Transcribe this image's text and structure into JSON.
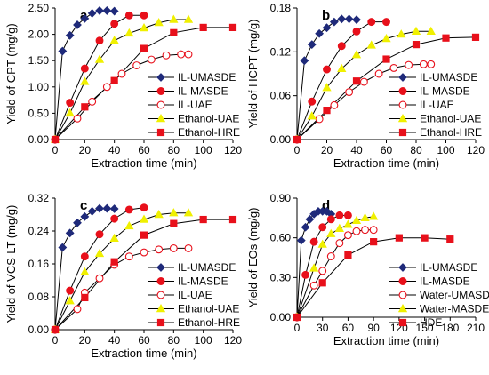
{
  "chart_data": [
    {
      "type": "line",
      "panel_label": "a",
      "xlabel": "Extraction time (min)",
      "ylabel": "Yield of CPT (mg/g)",
      "xlim": [
        0,
        120
      ],
      "ylim": [
        0,
        2.5
      ],
      "xticks": [
        0,
        20,
        40,
        60,
        80,
        100,
        120
      ],
      "yticks": [
        0,
        0.5,
        1,
        1.5,
        2,
        2.5
      ],
      "ytick_decimals": 2,
      "grid": false,
      "legend_position": "bottom-right",
      "series": [
        {
          "name": "IL-UMASDE",
          "marker": "diamond",
          "color": "#1f2a7a",
          "fill": "#1f2a7a",
          "points": [
            [
              0,
              0
            ],
            [
              5,
              1.68
            ],
            [
              10,
              1.98
            ],
            [
              15,
              2.18
            ],
            [
              20,
              2.3
            ],
            [
              25,
              2.4
            ],
            [
              30,
              2.45
            ],
            [
              35,
              2.45
            ],
            [
              40,
              2.44
            ]
          ]
        },
        {
          "name": "IL-MASDE",
          "marker": "circle",
          "color": "#e8101b",
          "fill": "#e8101b",
          "points": [
            [
              0,
              0
            ],
            [
              10,
              0.7
            ],
            [
              20,
              1.35
            ],
            [
              30,
              1.88
            ],
            [
              40,
              2.2
            ],
            [
              50,
              2.36
            ],
            [
              60,
              2.36
            ]
          ]
        },
        {
          "name": "IL-UAE",
          "marker": "circle",
          "color": "#e8101b",
          "fill": "#ffffff",
          "points": [
            [
              0,
              0
            ],
            [
              15,
              0.4
            ],
            [
              25,
              0.72
            ],
            [
              35,
              1.0
            ],
            [
              45,
              1.25
            ],
            [
              55,
              1.41
            ],
            [
              65,
              1.52
            ],
            [
              75,
              1.6
            ],
            [
              85,
              1.62
            ],
            [
              90,
              1.62
            ]
          ]
        },
        {
          "name": "Ethanol-UAE",
          "marker": "triangle",
          "color": "#f0f000",
          "fill": "#f0f000",
          "points": [
            [
              0,
              0
            ],
            [
              10,
              0.5
            ],
            [
              20,
              1.1
            ],
            [
              30,
              1.52
            ],
            [
              40,
              1.88
            ],
            [
              50,
              2.02
            ],
            [
              60,
              2.12
            ],
            [
              70,
              2.22
            ],
            [
              80,
              2.28
            ],
            [
              90,
              2.28
            ]
          ]
        },
        {
          "name": "Ethanol-HRE",
          "marker": "square",
          "color": "#e8101b",
          "fill": "#e8101b",
          "points": [
            [
              0,
              0
            ],
            [
              20,
              0.62
            ],
            [
              40,
              1.12
            ],
            [
              60,
              1.73
            ],
            [
              80,
              2.03
            ],
            [
              100,
              2.13
            ],
            [
              120,
              2.13
            ]
          ]
        }
      ]
    },
    {
      "type": "line",
      "panel_label": "b",
      "xlabel": "Extraction time (min)",
      "ylabel": "Yield of HCPT (mg/g)",
      "xlim": [
        0,
        120
      ],
      "ylim": [
        0,
        0.18
      ],
      "xticks": [
        0,
        20,
        40,
        60,
        80,
        100,
        120
      ],
      "yticks": [
        0,
        0.06,
        0.12,
        0.18
      ],
      "ytick_decimals": 2,
      "grid": false,
      "legend_position": "bottom-right",
      "series": [
        {
          "name": "IL-UMASDE",
          "marker": "diamond",
          "color": "#1f2a7a",
          "fill": "#1f2a7a",
          "points": [
            [
              0,
              0
            ],
            [
              5,
              0.108
            ],
            [
              10,
              0.13
            ],
            [
              15,
              0.145
            ],
            [
              20,
              0.153
            ],
            [
              25,
              0.161
            ],
            [
              30,
              0.165
            ],
            [
              35,
              0.165
            ],
            [
              40,
              0.164
            ]
          ]
        },
        {
          "name": "IL-MASDE",
          "marker": "circle",
          "color": "#e8101b",
          "fill": "#e8101b",
          "points": [
            [
              0,
              0
            ],
            [
              10,
              0.052
            ],
            [
              20,
              0.096
            ],
            [
              30,
              0.128
            ],
            [
              40,
              0.148
            ],
            [
              50,
              0.161
            ],
            [
              60,
              0.161
            ]
          ]
        },
        {
          "name": "IL-UAE",
          "marker": "circle",
          "color": "#e8101b",
          "fill": "#ffffff",
          "points": [
            [
              0,
              0
            ],
            [
              15,
              0.028
            ],
            [
              25,
              0.047
            ],
            [
              35,
              0.065
            ],
            [
              45,
              0.079
            ],
            [
              55,
              0.09
            ],
            [
              65,
              0.098
            ],
            [
              75,
              0.102
            ],
            [
              85,
              0.103
            ],
            [
              90,
              0.103
            ]
          ]
        },
        {
          "name": "Ethanol-UAE",
          "marker": "triangle",
          "color": "#f0f000",
          "fill": "#f0f000",
          "points": [
            [
              0,
              0
            ],
            [
              10,
              0.032
            ],
            [
              20,
              0.071
            ],
            [
              30,
              0.097
            ],
            [
              40,
              0.116
            ],
            [
              50,
              0.129
            ],
            [
              60,
              0.138
            ],
            [
              70,
              0.144
            ],
            [
              80,
              0.148
            ],
            [
              90,
              0.148
            ]
          ]
        },
        {
          "name": "Ethanol-HRE",
          "marker": "square",
          "color": "#e8101b",
          "fill": "#e8101b",
          "points": [
            [
              0,
              0
            ],
            [
              20,
              0.04
            ],
            [
              40,
              0.08
            ],
            [
              60,
              0.11
            ],
            [
              80,
              0.13
            ],
            [
              100,
              0.139
            ],
            [
              120,
              0.14
            ]
          ]
        }
      ]
    },
    {
      "type": "line",
      "panel_label": "c",
      "xlabel": "Extraction time (min)",
      "ylabel": "Yield of VCS-LT (mg/g)",
      "xlim": [
        0,
        120
      ],
      "ylim": [
        0,
        0.32
      ],
      "xticks": [
        0,
        20,
        40,
        60,
        80,
        100,
        120
      ],
      "yticks": [
        0,
        0.08,
        0.16,
        0.24,
        0.32
      ],
      "ytick_decimals": 2,
      "grid": false,
      "legend_position": "bottom-right",
      "series": [
        {
          "name": "IL-UMASDE",
          "marker": "diamond",
          "color": "#1f2a7a",
          "fill": "#1f2a7a",
          "points": [
            [
              0,
              0
            ],
            [
              5,
              0.2
            ],
            [
              10,
              0.235
            ],
            [
              15,
              0.26
            ],
            [
              20,
              0.275
            ],
            [
              25,
              0.288
            ],
            [
              30,
              0.295
            ],
            [
              35,
              0.295
            ],
            [
              40,
              0.294
            ]
          ]
        },
        {
          "name": "IL-MASDE",
          "marker": "circle",
          "color": "#e8101b",
          "fill": "#e8101b",
          "points": [
            [
              0,
              0
            ],
            [
              10,
              0.095
            ],
            [
              20,
              0.178
            ],
            [
              30,
              0.232
            ],
            [
              40,
              0.27
            ],
            [
              50,
              0.292
            ],
            [
              60,
              0.297
            ]
          ]
        },
        {
          "name": "IL-UAE",
          "marker": "circle",
          "color": "#e8101b",
          "fill": "#ffffff",
          "points": [
            [
              0,
              0
            ],
            [
              15,
              0.05
            ],
            [
              20,
              0.09
            ],
            [
              30,
              0.125
            ],
            [
              40,
              0.158
            ],
            [
              50,
              0.178
            ],
            [
              60,
              0.188
            ],
            [
              70,
              0.195
            ],
            [
              80,
              0.198
            ],
            [
              90,
              0.198
            ]
          ]
        },
        {
          "name": "Ethanol-UAE",
          "marker": "triangle",
          "color": "#f0f000",
          "fill": "#f0f000",
          "points": [
            [
              0,
              0
            ],
            [
              10,
              0.07
            ],
            [
              20,
              0.14
            ],
            [
              30,
              0.185
            ],
            [
              40,
              0.222
            ],
            [
              50,
              0.252
            ],
            [
              60,
              0.268
            ],
            [
              70,
              0.28
            ],
            [
              80,
              0.284
            ],
            [
              90,
              0.284
            ]
          ]
        },
        {
          "name": "Ethanol-HRE",
          "marker": "square",
          "color": "#e8101b",
          "fill": "#e8101b",
          "points": [
            [
              0,
              0
            ],
            [
              20,
              0.078
            ],
            [
              40,
              0.165
            ],
            [
              60,
              0.23
            ],
            [
              80,
              0.258
            ],
            [
              100,
              0.268
            ],
            [
              120,
              0.268
            ]
          ]
        }
      ]
    },
    {
      "type": "line",
      "panel_label": "d",
      "xlabel": "Extraction time (min)",
      "ylabel": "Yield of EOs (mg/g)",
      "xlim": [
        0,
        210
      ],
      "ylim": [
        0,
        0.9
      ],
      "xticks": [
        0,
        30,
        60,
        90,
        120,
        150,
        180,
        210
      ],
      "yticks": [
        0,
        0.3,
        0.6,
        0.9
      ],
      "ytick_decimals": 2,
      "grid": false,
      "legend_position": "bottom-right",
      "series": [
        {
          "name": "IL-UMASDE",
          "marker": "diamond",
          "color": "#1f2a7a",
          "fill": "#1f2a7a",
          "points": [
            [
              0,
              0
            ],
            [
              5,
              0.58
            ],
            [
              10,
              0.68
            ],
            [
              15,
              0.74
            ],
            [
              20,
              0.78
            ],
            [
              25,
              0.8
            ],
            [
              30,
              0.8
            ],
            [
              35,
              0.8
            ],
            [
              40,
              0.78
            ]
          ]
        },
        {
          "name": "IL-MASDE",
          "marker": "circle",
          "color": "#e8101b",
          "fill": "#e8101b",
          "points": [
            [
              0,
              0
            ],
            [
              10,
              0.32
            ],
            [
              20,
              0.57
            ],
            [
              30,
              0.68
            ],
            [
              40,
              0.74
            ],
            [
              50,
              0.77
            ],
            [
              60,
              0.77
            ]
          ]
        },
        {
          "name": "Water-UMASDE",
          "marker": "circle",
          "color": "#e8101b",
          "fill": "#ffffff",
          "points": [
            [
              0,
              0
            ],
            [
              20,
              0.24
            ],
            [
              30,
              0.35
            ],
            [
              40,
              0.46
            ],
            [
              50,
              0.56
            ],
            [
              60,
              0.62
            ],
            [
              70,
              0.65
            ],
            [
              80,
              0.66
            ],
            [
              90,
              0.66
            ]
          ]
        },
        {
          "name": "Water-MASDE",
          "marker": "triangle",
          "color": "#f0f000",
          "fill": "#f0f000",
          "points": [
            [
              0,
              0
            ],
            [
              20,
              0.37
            ],
            [
              30,
              0.55
            ],
            [
              40,
              0.63
            ],
            [
              50,
              0.67
            ],
            [
              60,
              0.7
            ],
            [
              70,
              0.73
            ],
            [
              80,
              0.75
            ],
            [
              90,
              0.76
            ]
          ]
        },
        {
          "name": "HDE",
          "marker": "square",
          "color": "#e8101b",
          "fill": "#e8101b",
          "points": [
            [
              0,
              0
            ],
            [
              30,
              0.26
            ],
            [
              60,
              0.47
            ],
            [
              90,
              0.57
            ],
            [
              120,
              0.6
            ],
            [
              150,
              0.6
            ],
            [
              180,
              0.59
            ]
          ]
        }
      ]
    }
  ]
}
